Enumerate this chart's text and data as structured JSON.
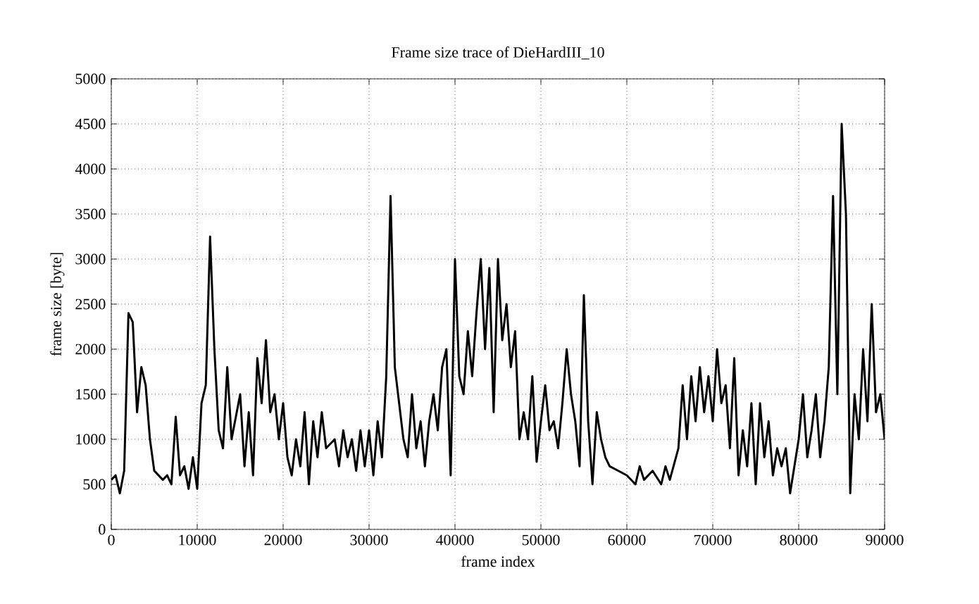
{
  "chart_data": {
    "type": "line",
    "title": "Frame size trace of DieHardIII_10",
    "xlabel": "frame index",
    "ylabel": "frame size [byte]",
    "xlim": [
      0,
      90000
    ],
    "ylim": [
      0,
      5000
    ],
    "xticks": [
      0,
      10000,
      20000,
      30000,
      40000,
      50000,
      60000,
      70000,
      80000,
      90000
    ],
    "yticks": [
      0,
      500,
      1000,
      1500,
      2000,
      2500,
      3000,
      3500,
      4000,
      4500,
      5000
    ],
    "grid": true,
    "marker": "none",
    "line_style": "solid",
    "series": [
      {
        "color": "#000000",
        "x": [
          0,
          500,
          1000,
          1500,
          2000,
          2500,
          3000,
          3500,
          4000,
          4500,
          5000,
          6000,
          6500,
          7000,
          7500,
          8000,
          8500,
          9000,
          9500,
          10000,
          10500,
          11000,
          11500,
          12000,
          12500,
          13000,
          13500,
          14000,
          15000,
          15500,
          16000,
          16500,
          17000,
          17500,
          18000,
          18500,
          19000,
          19500,
          20000,
          20500,
          21000,
          21500,
          22000,
          22500,
          23000,
          23500,
          24000,
          24500,
          25000,
          26000,
          26500,
          27000,
          27500,
          28000,
          28500,
          29000,
          29500,
          30000,
          30500,
          31000,
          31500,
          32000,
          32500,
          33000,
          33500,
          34000,
          34500,
          35000,
          35500,
          36000,
          36500,
          37000,
          37500,
          38000,
          38500,
          39000,
          39500,
          40000,
          40500,
          41000,
          41500,
          42000,
          42500,
          43000,
          43500,
          44000,
          44500,
          45000,
          45500,
          46000,
          46500,
          47000,
          47500,
          48000,
          48500,
          49000,
          49500,
          50000,
          50500,
          51000,
          51500,
          52000,
          52500,
          53000,
          53500,
          54000,
          54500,
          55000,
          55500,
          56000,
          56500,
          57000,
          57500,
          58000,
          59000,
          60000,
          61000,
          61500,
          62000,
          63000,
          64000,
          64500,
          65000,
          66000,
          66500,
          67000,
          67500,
          68000,
          68500,
          69000,
          69500,
          70000,
          70500,
          71000,
          71500,
          72000,
          72500,
          73000,
          73500,
          74000,
          74500,
          75000,
          75500,
          76000,
          76500,
          77000,
          77500,
          78000,
          78500,
          79000,
          79500,
          80000,
          80500,
          81000,
          81500,
          82000,
          82500,
          83000,
          83500,
          84000,
          84500,
          85000,
          85500,
          86000,
          86500,
          87000,
          87500,
          88000,
          88500,
          89000,
          89500,
          90000
        ],
        "values": [
          550,
          600,
          400,
          650,
          2400,
          2300,
          1300,
          1800,
          1600,
          1000,
          650,
          550,
          600,
          500,
          1250,
          600,
          700,
          450,
          800,
          450,
          1400,
          1600,
          3250,
          2000,
          1100,
          900,
          1800,
          1000,
          1500,
          700,
          1300,
          600,
          1900,
          1400,
          2100,
          1300,
          1500,
          1000,
          1400,
          800,
          600,
          1000,
          700,
          1300,
          500,
          1200,
          800,
          1300,
          900,
          1000,
          700,
          1100,
          800,
          1000,
          650,
          1100,
          700,
          1100,
          600,
          1200,
          800,
          1700,
          3700,
          1800,
          1400,
          1000,
          800,
          1500,
          900,
          1200,
          700,
          1200,
          1500,
          1100,
          1800,
          2000,
          600,
          3000,
          1700,
          1500,
          2200,
          1700,
          2400,
          3000,
          2000,
          2900,
          1300,
          3000,
          2100,
          2500,
          1800,
          2200,
          1000,
          1300,
          1000,
          1700,
          750,
          1200,
          1600,
          1100,
          1200,
          900,
          1400,
          2000,
          1500,
          1200,
          700,
          2600,
          1200,
          500,
          1300,
          1000,
          800,
          700,
          650,
          600,
          500,
          700,
          550,
          650,
          500,
          700,
          550,
          900,
          1600,
          1000,
          1700,
          1200,
          1800,
          1300,
          1700,
          1200,
          2000,
          1400,
          1600,
          900,
          1900,
          600,
          1100,
          700,
          1400,
          500,
          1400,
          800,
          1200,
          600,
          900,
          700,
          900,
          400,
          700,
          1000,
          1500,
          800,
          1100,
          1500,
          800,
          1200,
          1800,
          3700,
          1500,
          4500,
          3500,
          400,
          1500,
          1000,
          2000,
          1200,
          2500,
          1300,
          1500,
          1000
        ]
      }
    ]
  }
}
